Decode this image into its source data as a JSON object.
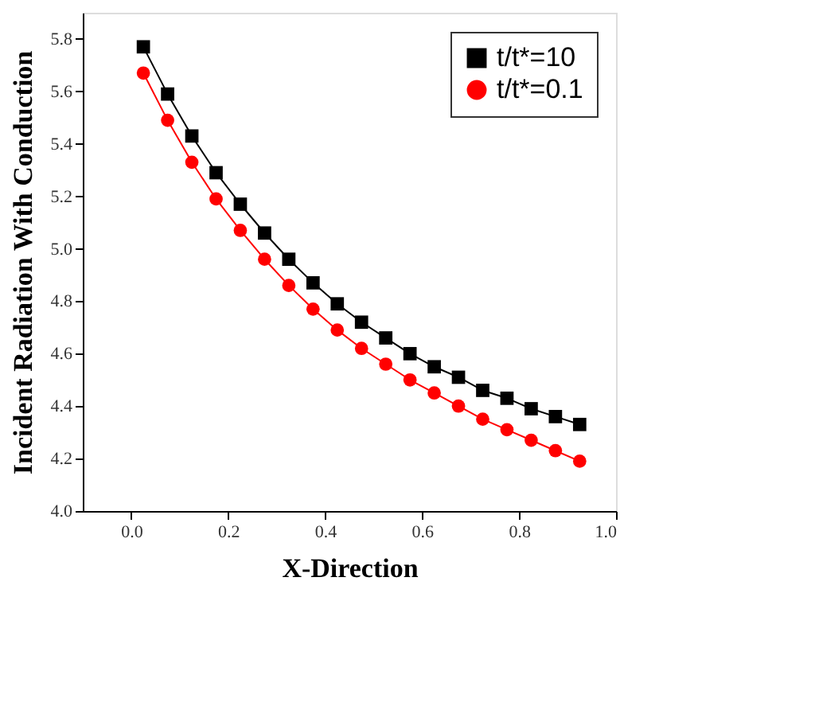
{
  "chart_data": {
    "type": "line",
    "xlabel": "X-Direction",
    "ylabel": "Incident Radiation With Conduction",
    "x": [
      0.025,
      0.075,
      0.125,
      0.175,
      0.225,
      0.275,
      0.325,
      0.375,
      0.425,
      0.475,
      0.525,
      0.575,
      0.625,
      0.675,
      0.725,
      0.775,
      0.825,
      0.875,
      0.925
    ],
    "series": [
      {
        "name": "t/t*=10",
        "color": "#000000",
        "marker": "square",
        "values": [
          5.77,
          5.59,
          5.43,
          5.29,
          5.17,
          5.06,
          4.96,
          4.87,
          4.79,
          4.72,
          4.66,
          4.6,
          4.55,
          4.51,
          4.46,
          4.43,
          4.39,
          4.36,
          4.33
        ]
      },
      {
        "name": "t/t*=0.1",
        "color": "#ff0000",
        "marker": "circle",
        "values": [
          5.67,
          5.49,
          5.33,
          5.19,
          5.07,
          4.96,
          4.86,
          4.77,
          4.69,
          4.62,
          4.56,
          4.5,
          4.45,
          4.4,
          4.35,
          4.31,
          4.27,
          4.23,
          4.19
        ]
      }
    ],
    "xlim": [
      -0.1,
      1.0
    ],
    "xticks": [
      {
        "value": 0,
        "label": "0.0"
      },
      0.2,
      0.4,
      0.6,
      0.8,
      {
        "value": 1,
        "label": "1.0"
      }
    ],
    "ylim": [
      4.0,
      5.9
    ],
    "yticks": [
      {
        "value": 4,
        "label": "4.0"
      },
      4.2,
      4.4,
      4.6,
      4.8,
      {
        "value": 5,
        "label": "5.0"
      },
      5.2,
      5.4,
      5.6,
      5.8
    ],
    "legend": "top right",
    "grid": false,
    "line_style": "solid"
  }
}
